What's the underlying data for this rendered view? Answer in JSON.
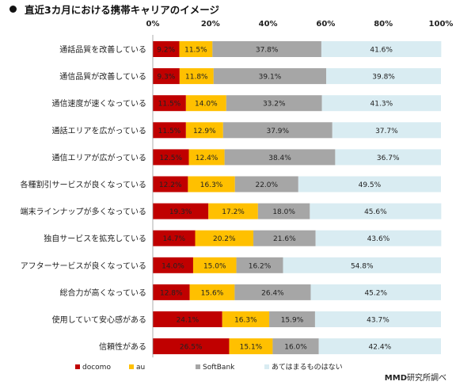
{
  "chart_data": {
    "type": "bar",
    "stacked": true,
    "orientation": "horizontal",
    "title": "直近3カ月における携帯キャリアのイメージ",
    "credit_brand": "MMD",
    "credit_suffix": "研究所調べ",
    "xlim": [
      0,
      100
    ],
    "x_ticks": [
      "0%",
      "20%",
      "40%",
      "60%",
      "80%",
      "100%"
    ],
    "grid": false,
    "legend_position": "bottom",
    "categories": [
      "通話品質を改善している",
      "通信品質が改善している",
      "通信速度が速くなっている",
      "通話エリアを広がっている",
      "通信エリアが広がっている",
      "各種割引サービスが良くなっている",
      "端末ラインナップが多くなっている",
      "独自サービスを拡充している",
      "アフターサービスが良くなっている",
      "総合力が高くなっている",
      "使用していて安心感がある",
      "信頼性がある"
    ],
    "series": [
      {
        "name": "docomo",
        "color": "#c00000",
        "values": [
          9.2,
          9.3,
          11.5,
          11.5,
          12.5,
          12.2,
          19.3,
          14.7,
          14.0,
          12.8,
          24.1,
          26.5
        ]
      },
      {
        "name": "au",
        "color": "#ffc000",
        "values": [
          11.5,
          11.8,
          14.0,
          12.9,
          12.4,
          16.3,
          17.2,
          20.2,
          15.0,
          15.6,
          16.3,
          15.1
        ]
      },
      {
        "name": "SoftBank",
        "color": "#a6a6a6",
        "values": [
          37.8,
          39.1,
          33.2,
          37.9,
          38.4,
          22.0,
          18.0,
          21.6,
          16.2,
          26.4,
          15.9,
          16.0
        ]
      },
      {
        "name": "あてはまるものはない",
        "color": "#d9ecf2",
        "values": [
          41.6,
          39.8,
          41.3,
          37.7,
          36.7,
          49.5,
          45.6,
          43.6,
          54.8,
          45.2,
          43.7,
          42.4
        ]
      }
    ]
  }
}
